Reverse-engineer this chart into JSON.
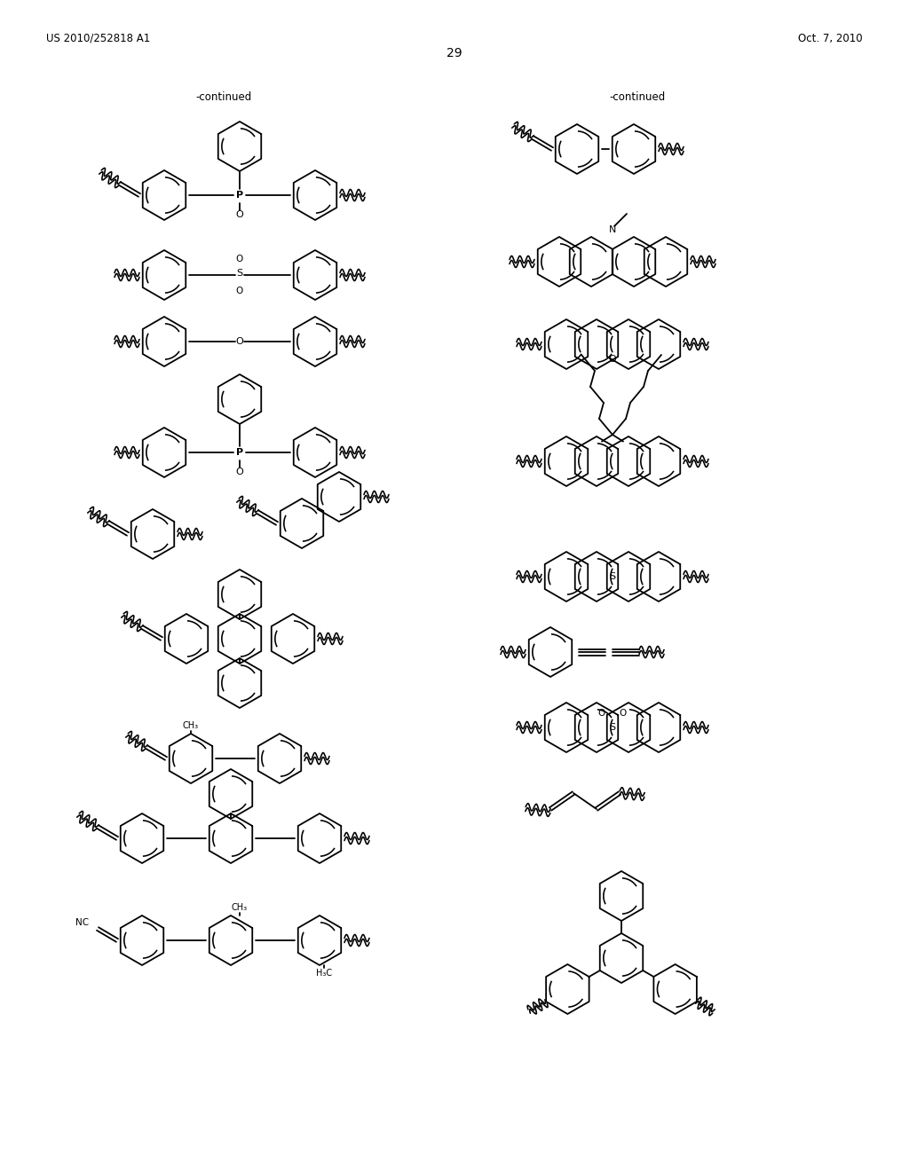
{
  "page_header_left": "US 2010/252818 A1",
  "page_header_right": "Oct. 7, 2010",
  "page_number": "29",
  "background": "#ffffff",
  "text_color": "#000000",
  "line_color": "#000000",
  "continued_label": "-continued"
}
